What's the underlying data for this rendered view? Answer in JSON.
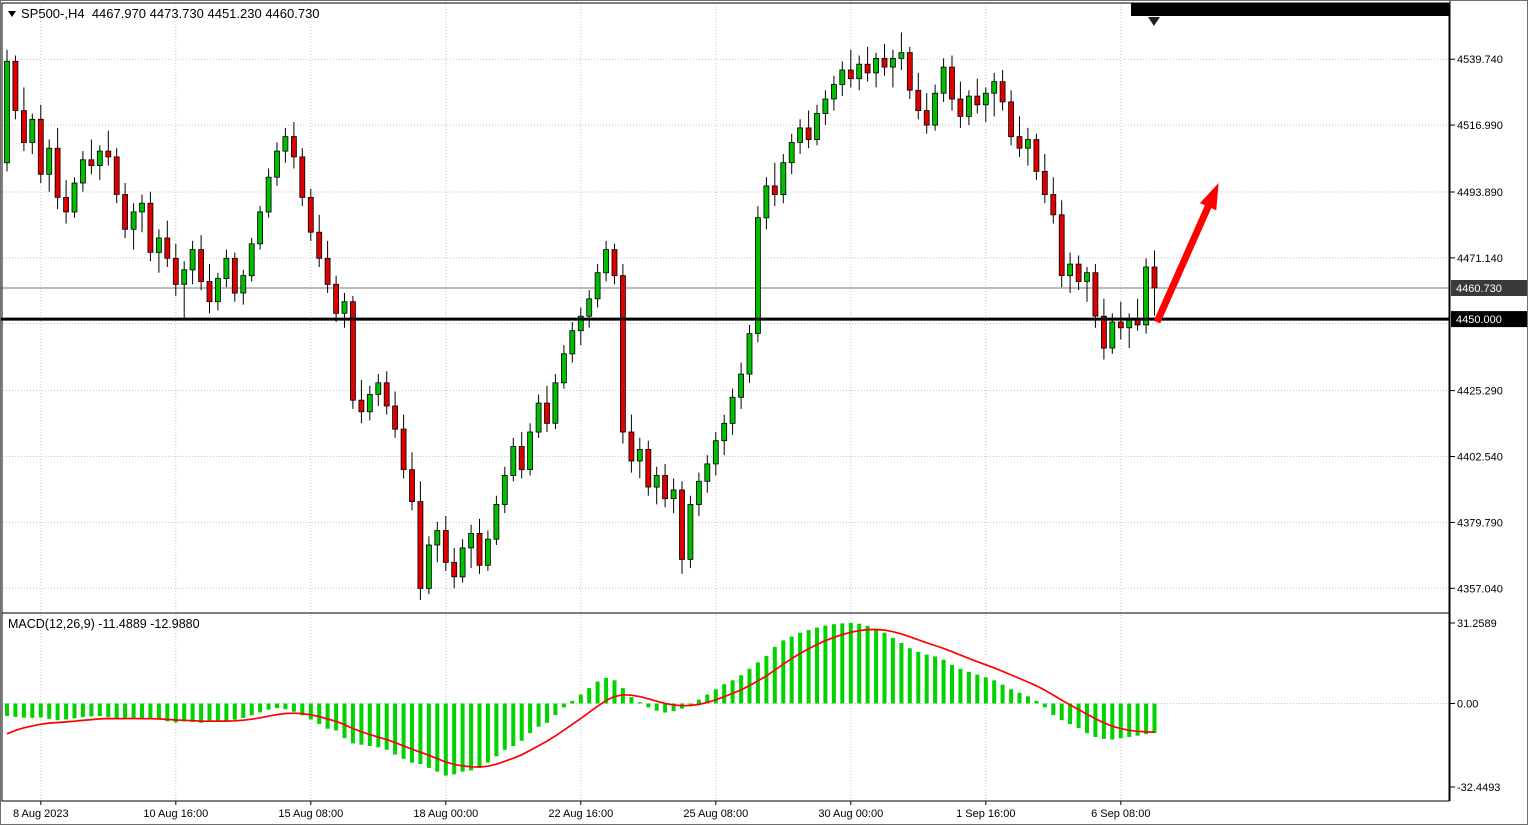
{
  "window": {
    "title_text": "SP500-,H4  4467.970 4473.730 4451.230 4460.730",
    "symbol": "SP500-",
    "timeframe": "H4",
    "ohlc_display": {
      "open": "4467.970",
      "high": "4473.730",
      "low": "4451.230",
      "close": "4460.730"
    }
  },
  "macd_panel": {
    "label": "MACD(12,26,9) -11.4889 -12.9880",
    "indicator": "MACD",
    "params": "12,26,9",
    "value": "-11.4889",
    "signal_value": "-12.9880"
  },
  "colors": {
    "up": "#00BE00",
    "down": "#E00000",
    "outline": "#000000",
    "macd_hist": "#00D300",
    "macd_signal": "#FF0000",
    "grid": "#c6c6c6",
    "support": "#000000",
    "current_line": "#7a7a7a",
    "arrow": "#FF0000",
    "tag_current_bg": "#3a3a3a",
    "tag_support_bg": "#000000"
  },
  "annotations": {
    "arrow": {
      "from_bar": 136.3,
      "from_price": 4449,
      "to_bar": 143.6,
      "to_price": 4497,
      "color": "#FF0000"
    },
    "black_bar_top_right": true
  },
  "chart_data": [
    {
      "type": "candlestick",
      "title": "SP500-,H4",
      "symbol": "SP500-",
      "timeframe": "H4",
      "ylim": [
        4349.2,
        4551.2
      ],
      "y_ticks": [
        {
          "v": 4539.74,
          "label": "4539.740"
        },
        {
          "v": 4516.99,
          "label": "4516.990"
        },
        {
          "v": 4493.89,
          "label": "4493.890"
        },
        {
          "v": 4471.14,
          "label": "4471.140"
        },
        {
          "v": 4425.29,
          "label": "4425.290"
        },
        {
          "v": 4402.54,
          "label": "4402.540"
        },
        {
          "v": 4379.79,
          "label": "4379.790"
        },
        {
          "v": 4357.04,
          "label": "4357.040"
        }
      ],
      "y_gridlines": [
        4539.74,
        4516.99,
        4493.89,
        4471.14,
        4448.39,
        4425.29,
        4402.54,
        4379.79,
        4357.04
      ],
      "x_ticks": [
        {
          "i": 4,
          "label": "8 Aug 2023"
        },
        {
          "i": 20,
          "label": "10 Aug 16:00"
        },
        {
          "i": 36,
          "label": "15 Aug 08:00"
        },
        {
          "i": 52,
          "label": "18 Aug 00:00"
        },
        {
          "i": 68,
          "label": "22 Aug 16:00"
        },
        {
          "i": 84,
          "label": "25 Aug 08:00"
        },
        {
          "i": 100,
          "label": "30 Aug 00:00"
        },
        {
          "i": 116,
          "label": "1 Sep 16:00"
        },
        {
          "i": 132,
          "label": "6 Sep 08:00"
        }
      ],
      "price_markers": {
        "current": {
          "v": 4460.73,
          "label": "4460.730"
        },
        "support": {
          "v": 4450.0,
          "label": "4450.000"
        }
      },
      "ohlc": [
        [
          4504,
          4543,
          4501,
          4539
        ],
        [
          4539,
          4541,
          4519,
          4522
        ],
        [
          4522,
          4530,
          4508,
          4511
        ],
        [
          4511,
          4521,
          4507,
          4519
        ],
        [
          4519,
          4524,
          4497,
          4500
        ],
        [
          4500,
          4512,
          4494,
          4509
        ],
        [
          4509,
          4516,
          4488,
          4492
        ],
        [
          4492,
          4498,
          4483,
          4487
        ],
        [
          4487,
          4499,
          4485,
          4497
        ],
        [
          4497,
          4508,
          4494,
          4505
        ],
        [
          4505,
          4512,
          4500,
          4503
        ],
        [
          4503,
          4510,
          4498,
          4508
        ],
        [
          4508,
          4515,
          4503,
          4506
        ],
        [
          4506,
          4509,
          4490,
          4493
        ],
        [
          4493,
          4497,
          4478,
          4481
        ],
        [
          4481,
          4490,
          4474,
          4487
        ],
        [
          4487,
          4493,
          4480,
          4490
        ],
        [
          4490,
          4494,
          4470,
          4473
        ],
        [
          4473,
          4481,
          4466,
          4478
        ],
        [
          4478,
          4484,
          4468,
          4471
        ],
        [
          4471,
          4476,
          4458,
          4462
        ],
        [
          4462,
          4470,
          4450,
          4467
        ],
        [
          4467,
          4477,
          4462,
          4474
        ],
        [
          4474,
          4479,
          4460,
          4463
        ],
        [
          4463,
          4469,
          4452,
          4456
        ],
        [
          4456,
          4466,
          4453,
          4464
        ],
        [
          4464,
          4474,
          4461,
          4471
        ],
        [
          4471,
          4473,
          4456,
          4459
        ],
        [
          4459,
          4467,
          4455,
          4465
        ],
        [
          4465,
          4478,
          4463,
          4476
        ],
        [
          4476,
          4489,
          4474,
          4487
        ],
        [
          4487,
          4502,
          4485,
          4499
        ],
        [
          4499,
          4511,
          4496,
          4508
        ],
        [
          4508,
          4516,
          4504,
          4513
        ],
        [
          4513,
          4518,
          4502,
          4506
        ],
        [
          4506,
          4509,
          4489,
          4492
        ],
        [
          4492,
          4495,
          4477,
          4480
        ],
        [
          4480,
          4486,
          4468,
          4471
        ],
        [
          4471,
          4477,
          4459,
          4462
        ],
        [
          4462,
          4465,
          4449,
          4452
        ],
        [
          4452,
          4459,
          4447,
          4456
        ],
        [
          4456,
          4458,
          4419,
          4422
        ],
        [
          4422,
          4429,
          4414,
          4418
        ],
        [
          4418,
          4427,
          4415,
          4424
        ],
        [
          4424,
          4431,
          4420,
          4428
        ],
        [
          4428,
          4432,
          4417,
          4420
        ],
        [
          4420,
          4425,
          4409,
          4412
        ],
        [
          4412,
          4417,
          4395,
          4398
        ],
        [
          4398,
          4404,
          4384,
          4387
        ],
        [
          4387,
          4394,
          4353,
          4357
        ],
        [
          4357,
          4375,
          4355,
          4372
        ],
        [
          4372,
          4380,
          4366,
          4377
        ],
        [
          4377,
          4382,
          4363,
          4366
        ],
        [
          4366,
          4371,
          4357,
          4361
        ],
        [
          4361,
          4374,
          4359,
          4371
        ],
        [
          4371,
          4379,
          4364,
          4376
        ],
        [
          4376,
          4381,
          4362,
          4365
        ],
        [
          4365,
          4377,
          4363,
          4374
        ],
        [
          4374,
          4389,
          4372,
          4386
        ],
        [
          4386,
          4399,
          4383,
          4396
        ],
        [
          4396,
          4409,
          4394,
          4406
        ],
        [
          4406,
          4411,
          4395,
          4398
        ],
        [
          4398,
          4414,
          4396,
          4411
        ],
        [
          4411,
          4424,
          4409,
          4421
        ],
        [
          4421,
          4427,
          4411,
          4414
        ],
        [
          4414,
          4431,
          4412,
          4428
        ],
        [
          4428,
          4441,
          4426,
          4438
        ],
        [
          4438,
          4449,
          4435,
          4446
        ],
        [
          4446,
          4454,
          4441,
          4451
        ],
        [
          4451,
          4460,
          4447,
          4457
        ],
        [
          4457,
          4469,
          4454,
          4466
        ],
        [
          4466,
          4477,
          4463,
          4474
        ],
        [
          4474,
          4476,
          4462,
          4465
        ],
        [
          4465,
          4469,
          4407,
          4411
        ],
        [
          4411,
          4417,
          4397,
          4401
        ],
        [
          4401,
          4409,
          4395,
          4405
        ],
        [
          4405,
          4408,
          4389,
          4392
        ],
        [
          4392,
          4399,
          4386,
          4396
        ],
        [
          4396,
          4400,
          4385,
          4388
        ],
        [
          4388,
          4395,
          4383,
          4391
        ],
        [
          4391,
          4394,
          4362,
          4367
        ],
        [
          4367,
          4389,
          4364,
          4386
        ],
        [
          4386,
          4397,
          4382,
          4394
        ],
        [
          4394,
          4403,
          4390,
          4400
        ],
        [
          4400,
          4411,
          4396,
          4408
        ],
        [
          4408,
          4417,
          4403,
          4414
        ],
        [
          4414,
          4426,
          4410,
          4423
        ],
        [
          4423,
          4435,
          4419,
          4431
        ],
        [
          4431,
          4448,
          4428,
          4445
        ],
        [
          4445,
          4489,
          4442,
          4485
        ],
        [
          4485,
          4499,
          4481,
          4496
        ],
        [
          4496,
          4504,
          4489,
          4493
        ],
        [
          4493,
          4507,
          4490,
          4504
        ],
        [
          4504,
          4514,
          4500,
          4511
        ],
        [
          4511,
          4519,
          4507,
          4516
        ],
        [
          4516,
          4522,
          4509,
          4512
        ],
        [
          4512,
          4524,
          4510,
          4521
        ],
        [
          4521,
          4529,
          4517,
          4526
        ],
        [
          4526,
          4534,
          4522,
          4531
        ],
        [
          4531,
          4539,
          4527,
          4536
        ],
        [
          4536,
          4543,
          4530,
          4533
        ],
        [
          4533,
          4541,
          4529,
          4538
        ],
        [
          4538,
          4544,
          4532,
          4535
        ],
        [
          4535,
          4542,
          4530,
          4540
        ],
        [
          4540,
          4545,
          4534,
          4537
        ],
        [
          4537,
          4543,
          4530,
          4540
        ],
        [
          4540,
          4549,
          4536,
          4542
        ],
        [
          4542,
          4544,
          4526,
          4529
        ],
        [
          4529,
          4535,
          4519,
          4522
        ],
        [
          4522,
          4528,
          4514,
          4517
        ],
        [
          4517,
          4531,
          4515,
          4528
        ],
        [
          4528,
          4540,
          4525,
          4537
        ],
        [
          4537,
          4541,
          4522,
          4526
        ],
        [
          4526,
          4532,
          4516,
          4520
        ],
        [
          4520,
          4529,
          4517,
          4527
        ],
        [
          4527,
          4533,
          4521,
          4524
        ],
        [
          4524,
          4530,
          4518,
          4528
        ],
        [
          4528,
          4535,
          4520,
          4532
        ],
        [
          4532,
          4536,
          4522,
          4525
        ],
        [
          4525,
          4529,
          4510,
          4513
        ],
        [
          4513,
          4520,
          4506,
          4509
        ],
        [
          4509,
          4516,
          4503,
          4512
        ],
        [
          4512,
          4514,
          4498,
          4501
        ],
        [
          4501,
          4507,
          4490,
          4493
        ],
        [
          4493,
          4499,
          4483,
          4486
        ],
        [
          4486,
          4491,
          4461,
          4465
        ],
        [
          4465,
          4473,
          4459,
          4469
        ],
        [
          4469,
          4472,
          4460,
          4463
        ],
        [
          4463,
          4468,
          4456,
          4466
        ],
        [
          4466,
          4469,
          4447,
          4451
        ],
        [
          4451,
          4457,
          4436,
          4440
        ],
        [
          4440,
          4452,
          4438,
          4449
        ],
        [
          4449,
          4456,
          4443,
          4447
        ],
        [
          4447,
          4452,
          4440,
          4450
        ],
        [
          4450,
          4457,
          4446,
          4448
        ],
        [
          4448,
          4471,
          4445,
          4468
        ],
        [
          4467.97,
          4473.73,
          4451.23,
          4460.73
        ]
      ]
    },
    {
      "type": "bar",
      "name": "MACD(12,26,9) histogram",
      "ylim": [
        -37.1,
        34.4
      ],
      "y_ticks": [
        {
          "v": 31.2589,
          "label": "31.2589"
        },
        {
          "v": 0,
          "label": "0.00"
        },
        {
          "v": -32.4493,
          "label": "-32.4493"
        }
      ],
      "signal_seed": -13.5,
      "signal_smoothing": 0.2,
      "values": [
        -4.8,
        -5.2,
        -5.5,
        -5.6,
        -5.4,
        -6,
        -6.5,
        -6.2,
        -5.7,
        -5.3,
        -5,
        -4.9,
        -5.3,
        -6,
        -5.9,
        -5.6,
        -6.2,
        -6,
        -6.3,
        -6.9,
        -7.4,
        -7,
        -7.2,
        -7.5,
        -7.1,
        -6.6,
        -6.8,
        -6.3,
        -5.6,
        -4.6,
        -3.4,
        -2.4,
        -1.8,
        -2.2,
        -3.2,
        -4.6,
        -6.2,
        -8,
        -9.8,
        -10.5,
        -13.5,
        -15.5,
        -16,
        -16.5,
        -17,
        -18,
        -19.8,
        -21.5,
        -23,
        -23.5,
        -25,
        -26.5,
        -28,
        -27.5,
        -26.5,
        -26,
        -25,
        -23,
        -20.5,
        -18,
        -16.5,
        -14.5,
        -11.5,
        -9,
        -7.5,
        -4.5,
        -1.5,
        1,
        3.5,
        6,
        8.5,
        10,
        9,
        6,
        2.5,
        0.5,
        -1.5,
        -2.8,
        -3.5,
        -3,
        -2,
        -0.5,
        1.5,
        3.5,
        5.5,
        7.5,
        9,
        11,
        13.5,
        16,
        18.5,
        22,
        24.5,
        26,
        27.5,
        28.5,
        29.5,
        30.3,
        30.8,
        31.1,
        31.3,
        31,
        30.2,
        29,
        27.5,
        25.5,
        23.5,
        21.5,
        20,
        19,
        18.3,
        17,
        15,
        13.5,
        12.3,
        11.2,
        10.2,
        9,
        7.3,
        5.5,
        4.2,
        2.8,
        1,
        -1.5,
        -4.5,
        -6.5,
        -8,
        -9.5,
        -11.5,
        -13,
        -13.8,
        -14,
        -13.5,
        -13,
        -12.5,
        -11.9,
        -11.49
      ]
    }
  ]
}
